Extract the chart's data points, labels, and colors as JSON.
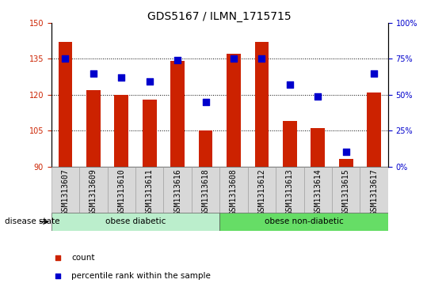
{
  "title": "GDS5167 / ILMN_1715715",
  "samples": [
    "GSM1313607",
    "GSM1313609",
    "GSM1313610",
    "GSM1313611",
    "GSM1313616",
    "GSM1313618",
    "GSM1313608",
    "GSM1313612",
    "GSM1313613",
    "GSM1313614",
    "GSM1313615",
    "GSM1313617"
  ],
  "counts": [
    142,
    122,
    120,
    118,
    134,
    105,
    137,
    142,
    109,
    106,
    93,
    121
  ],
  "percentile_ranks": [
    75,
    65,
    62,
    59,
    74,
    45,
    75,
    75,
    57,
    49,
    10,
    65
  ],
  "ymin": 90,
  "ymax": 150,
  "yticks": [
    90,
    105,
    120,
    135,
    150
  ],
  "right_yticks": [
    0,
    25,
    50,
    75,
    100
  ],
  "right_yticklabels": [
    "0%",
    "25%",
    "50%",
    "75%",
    "100%"
  ],
  "groups": [
    {
      "label": "obese diabetic",
      "start": 0,
      "end": 6
    },
    {
      "label": "obese non-diabetic",
      "start": 6,
      "end": 12
    }
  ],
  "group_colors": [
    "#bbeecc",
    "#66dd66"
  ],
  "bar_color": "#cc2200",
  "dot_color": "#0000cc",
  "bar_bottom": 90,
  "bar_width": 0.5,
  "dot_size": 30,
  "title_fontsize": 10,
  "tick_fontsize": 7,
  "label_fontsize": 8,
  "grid_yticks": [
    105,
    120,
    135
  ],
  "disease_state_label": "disease state",
  "legend_items": [
    {
      "label": "count",
      "color": "#cc2200"
    },
    {
      "label": "percentile rank within the sample",
      "color": "#0000cc"
    }
  ],
  "xtick_bg_color": "#d8d8d8",
  "plot_bg_color": "#ffffff"
}
